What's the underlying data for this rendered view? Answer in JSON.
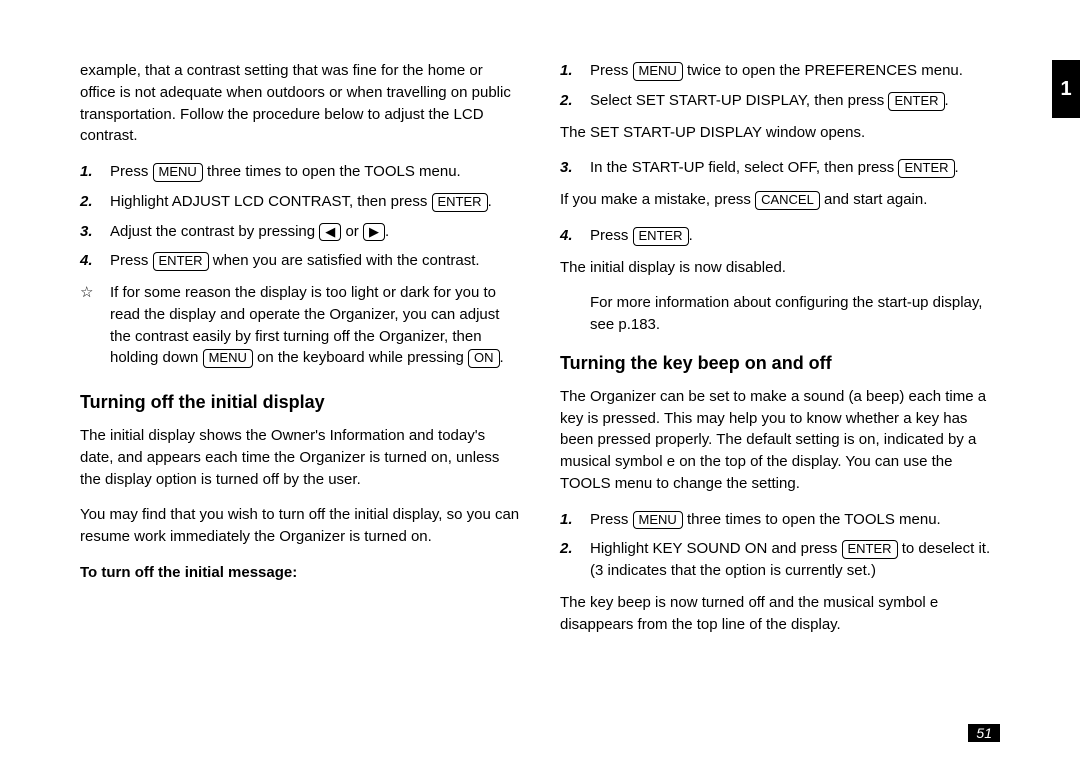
{
  "page_number": "51",
  "side_tab": "1",
  "left": {
    "intro": "example, that a contrast setting that was fine for the home or office is not adequate when outdoors or when travelling on public transportation. Follow the procedure below to adjust the LCD contrast.",
    "steps": {
      "s1_a": "Press ",
      "s1_key": "MENU",
      "s1_b": " three times to open the TOOLS menu.",
      "s2_a": "Highlight ADJUST LCD CONTRAST, then press ",
      "s2_key": "ENTER",
      "s2_b": ".",
      "s3_a": "Adjust the contrast by pressing ",
      "s3_key1": "◀",
      "s3_mid": " or ",
      "s3_key2": "▶",
      "s3_b": ".",
      "s4_a": "Press ",
      "s4_key": "ENTER",
      "s4_b": " when you are satisfied with the contrast."
    },
    "tip_icon": "☆",
    "tip_a": "If for some reason the display is too light or dark for you to read the display and operate the Organizer, you can adjust the contrast easily by first turning off the Organizer, then holding down ",
    "tip_key1": "MENU",
    "tip_mid": " on the keyboard while pressing ",
    "tip_key2": "ON",
    "tip_b": ".",
    "heading": "Turning off the initial display",
    "p1": "The initial display shows the Owner's Information and today's date, and appears each time the Organizer is turned on, unless the display option is turned off by the user.",
    "p2": "You may find that you wish to turn off the initial display, so you can resume work immediately the Organizer is turned on.",
    "subhead": "To turn off the initial message:"
  },
  "right": {
    "s1_a": "Press ",
    "s1_key": "MENU",
    "s1_b": " twice to open the PREFERENCES menu.",
    "s2_a": "Select SET START-UP DISPLAY, then press ",
    "s2_key": "ENTER",
    "s2_b": ".",
    "after2": "The SET START-UP DISPLAY window opens.",
    "s3_a": "In the START-UP field, select OFF, then press ",
    "s3_key": "ENTER",
    "s3_b": ".",
    "after3_a": "If you make a mistake, press ",
    "after3_key": "CANCEL",
    "after3_b": " and start again.",
    "s4_a": "Press ",
    "s4_key": "ENTER",
    "s4_b": ".",
    "after4": "The initial display is now disabled.",
    "moreinfo": "For more information about configuring the start-up display, see p.183.",
    "heading": "Turning the key beep on and off",
    "p1": "The Organizer can be set to make a sound (a beep) each time a key is pressed. This may help you to know whether a key has been pressed properly. The default setting is on, indicated by a musical symbol e on the top of the display. You can use the TOOLS menu to change the setting.",
    "b1_a": "Press ",
    "b1_key": "MENU",
    "b1_b": " three times to open the TOOLS menu.",
    "b2_a": "Highlight KEY SOUND ON and press ",
    "b2_key": "ENTER",
    "b2_b": " to deselect it. (3  indicates that the option is currently set.)",
    "closing": "The key beep is now turned off and the musical symbol e disappears from the top line of the display."
  }
}
